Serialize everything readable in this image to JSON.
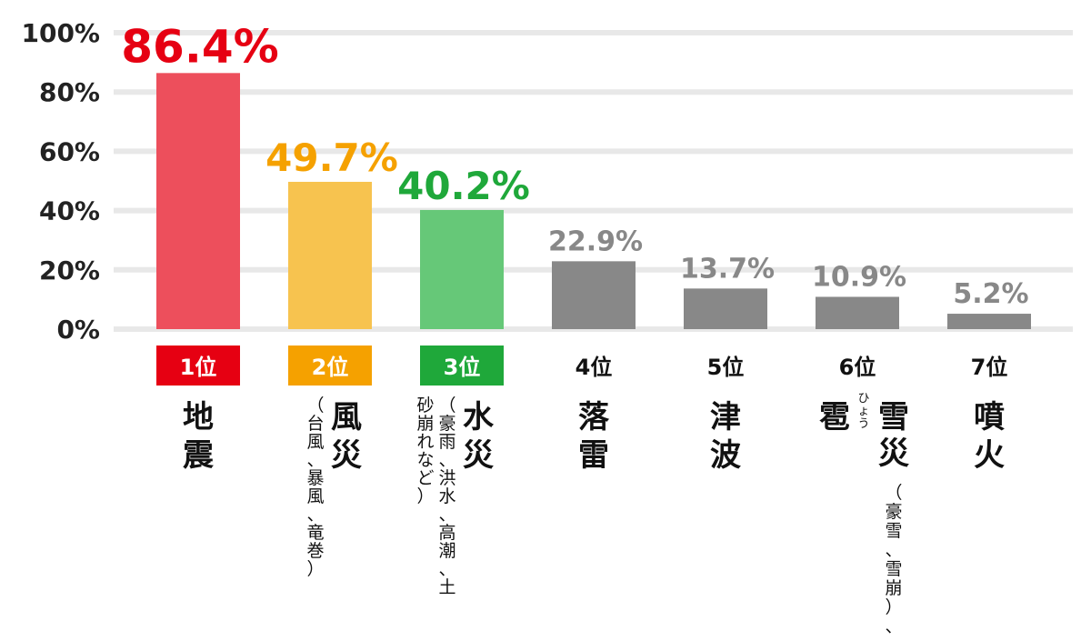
{
  "chart_data": {
    "type": "bar",
    "title": "",
    "xlabel": "",
    "ylabel": "",
    "ylim": [
      0,
      100
    ],
    "y_ticks": [
      "0%",
      "20%",
      "40%",
      "60%",
      "80%",
      "100%"
    ],
    "grid": true,
    "categories": [
      {
        "rank": "1位",
        "name": "地震",
        "sub": "",
        "ruby": ""
      },
      {
        "rank": "2位",
        "name": "風災",
        "sub": "（台風、暴風、竜巻）",
        "ruby": ""
      },
      {
        "rank": "3位",
        "name": "水災",
        "sub": "（豪雨、洪水、高潮、土砂崩れなど）",
        "ruby": ""
      },
      {
        "rank": "4位",
        "name": "落雷",
        "sub": "",
        "ruby": ""
      },
      {
        "rank": "5位",
        "name": "津波",
        "sub": "",
        "ruby": ""
      },
      {
        "rank": "6位",
        "name": "雹雪災",
        "sub": "（豪雪、雪崩）、",
        "ruby": "ひょう"
      },
      {
        "rank": "7位",
        "name": "噴火",
        "sub": "",
        "ruby": ""
      }
    ],
    "values": [
      86.4,
      49.7,
      40.2,
      22.9,
      13.7,
      10.9,
      5.2
    ],
    "value_labels": [
      "86.4%",
      "49.7%",
      "40.2%",
      "22.9%",
      "13.7%",
      "10.9%",
      "5.2%"
    ],
    "colors": {
      "bars": [
        "#ed4f5c",
        "#f7c34f",
        "#66c878",
        "#888888",
        "#888888",
        "#888888",
        "#888888"
      ],
      "labels": [
        "#e60012",
        "#f5a100",
        "#1fa83a",
        "#888888",
        "#888888",
        "#888888",
        "#888888"
      ],
      "rank_bg": [
        "#e60012",
        "#f5a100",
        "#1fa83a",
        "",
        "",
        "",
        ""
      ],
      "grid": "#e8e8e8"
    }
  }
}
